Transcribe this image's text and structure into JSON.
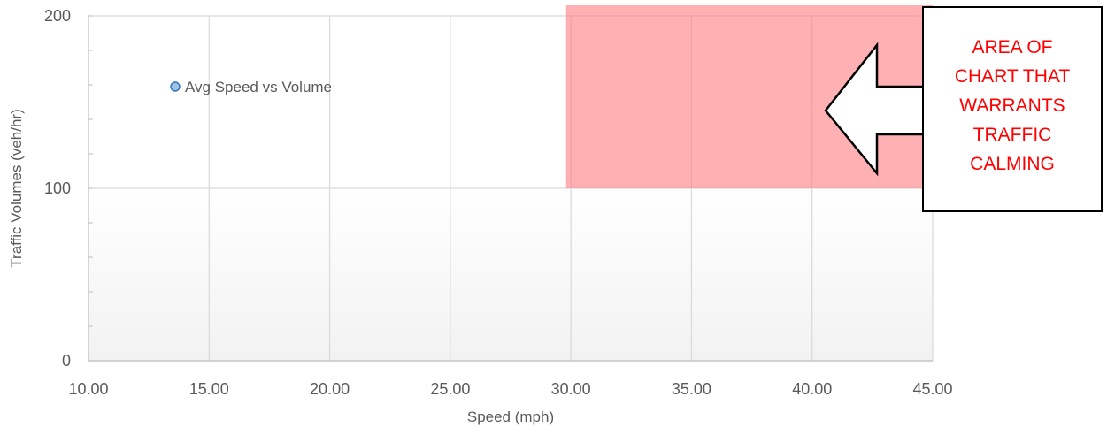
{
  "chart_data": {
    "type": "scatter",
    "title": "",
    "xlabel": "Speed (mph)",
    "ylabel": "Traffic Volumes (veh/hr)",
    "xlim": [
      10,
      45
    ],
    "ylim": [
      0,
      200
    ],
    "x_ticks": [
      "10.00",
      "15.00",
      "20.00",
      "25.00",
      "30.00",
      "35.00",
      "40.00",
      "45.00"
    ],
    "y_ticks": [
      "0",
      "100",
      "200"
    ],
    "grid": true,
    "legend": {
      "placement": "upper-left",
      "entries": [
        "Avg Speed vs Volume"
      ]
    },
    "series": [
      {
        "name": "Avg Speed vs Volume",
        "x": [],
        "y": [],
        "color": "#9dc3e6"
      }
    ],
    "highlight_region": {
      "x": [
        29.8,
        45
      ],
      "y": [
        100,
        200
      ],
      "color": "#ff7c80"
    },
    "annotation": {
      "lines": [
        "AREA OF",
        "CHART THAT",
        "WARRANTS",
        "TRAFFIC",
        "CALMING"
      ],
      "color": "#ff0000"
    }
  }
}
